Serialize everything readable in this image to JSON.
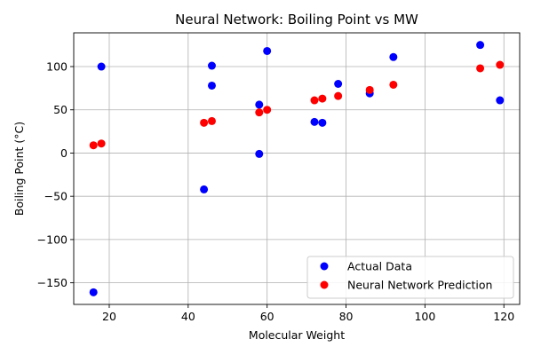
{
  "chart_data": {
    "type": "scatter",
    "title": "Neural Network: Boiling Point vs MW",
    "xlabel": "Molecular Weight",
    "ylabel": "Boiling Point (°C)",
    "xlim": [
      11,
      124
    ],
    "ylim": [
      -175,
      139
    ],
    "xticks": [
      20,
      40,
      60,
      80,
      100,
      120
    ],
    "yticks": [
      -150,
      -100,
      -50,
      0,
      50,
      100
    ],
    "grid": true,
    "legend_position": "lower-right",
    "series": [
      {
        "name": "Actual Data",
        "color": "#0000ff",
        "x": [
          16,
          18,
          44,
          46,
          46,
          58,
          58,
          60,
          72,
          74,
          78,
          86,
          92,
          114,
          119
        ],
        "y": [
          -161,
          100,
          -42,
          78,
          101,
          56,
          -1,
          118,
          36,
          35,
          80,
          69,
          111,
          125,
          61
        ]
      },
      {
        "name": "Neural Network Prediction",
        "color": "#ff0000",
        "x": [
          16,
          18,
          44,
          46,
          58,
          60,
          72,
          74,
          78,
          86,
          92,
          114,
          119
        ],
        "y": [
          9,
          11,
          35,
          37,
          47,
          50,
          61,
          63,
          66,
          73,
          79,
          98,
          102
        ]
      }
    ]
  }
}
